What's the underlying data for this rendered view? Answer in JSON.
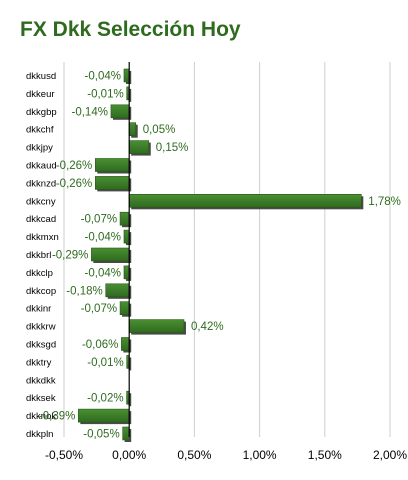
{
  "title": "FX Dkk Selección Hoy",
  "colors": {
    "bar": "#3a7a26",
    "bar_shadow": "#2a2a2a",
    "label": "#2f6b1f",
    "grid": "#cfcfcf"
  },
  "chart_data": {
    "type": "bar",
    "orientation": "horizontal",
    "title": "FX Dkk Selección Hoy",
    "categories": [
      "dkkusd",
      "dkkeur",
      "dkkgbp",
      "dkkchf",
      "dkkjpy",
      "dkkaud",
      "dkknzd",
      "dkkcny",
      "dkkcad",
      "dkkmxn",
      "dkkbrl",
      "dkkclp",
      "dkkcop",
      "dkkinr",
      "dkkkrw",
      "dkksgd",
      "dkktry",
      "dkkdkk",
      "dkksek",
      "dkknok",
      "dkkpln"
    ],
    "values": [
      -0.04,
      -0.01,
      -0.14,
      0.05,
      0.15,
      -0.26,
      -0.26,
      1.78,
      -0.07,
      -0.04,
      -0.29,
      -0.04,
      -0.18,
      -0.07,
      0.42,
      -0.06,
      -0.01,
      null,
      -0.02,
      -0.39,
      -0.05
    ],
    "data_labels": [
      "-0,04%",
      "-0,01%",
      "-0,14%",
      "0,05%",
      "0,15%",
      "-0,26%",
      "-0,26%",
      "1,78%",
      "-0,07%",
      "-0,04%",
      "-0,29%",
      "-0,04%",
      "-0,18%",
      "-0,07%",
      "0,42%",
      "-0,06%",
      "-0,01%",
      "",
      "-0,02%",
      "-0,39%",
      "-0,05%"
    ],
    "xlim": [
      -0.5,
      2.0
    ],
    "xticks": [
      -0.5,
      0,
      0.5,
      1.0,
      1.5,
      2.0
    ],
    "xtick_labels": [
      "-0,50%",
      "0,00%",
      "0,50%",
      "1,00%",
      "1,50%",
      "2,00%"
    ],
    "grid": true
  }
}
